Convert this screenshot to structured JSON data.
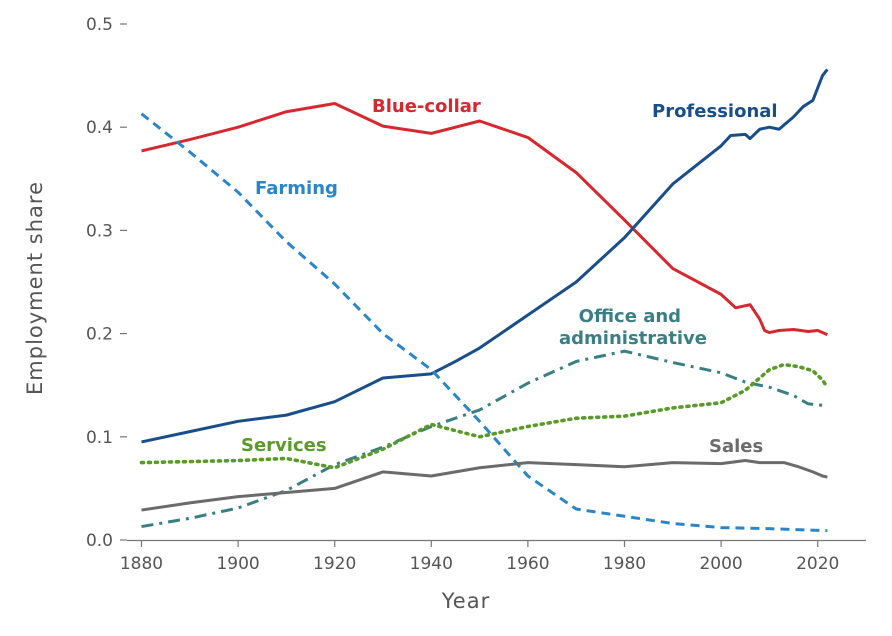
{
  "chart_data": {
    "type": "line",
    "title": "",
    "xlabel": "Year",
    "ylabel": "Employment share",
    "xlim": [
      1877,
      2030
    ],
    "ylim": [
      0,
      0.5
    ],
    "xticks": [
      1880,
      1900,
      1920,
      1940,
      1960,
      1980,
      2000,
      2020
    ],
    "yticks": [
      0.0,
      0.1,
      0.2,
      0.3,
      0.4,
      0.5
    ],
    "ytick_labels": [
      "0.0",
      "0.1",
      "0.2",
      "0.3",
      "0.4",
      "0.5"
    ],
    "grid": false,
    "legend": "none",
    "series": [
      {
        "name": "Blue-collar",
        "color": "#d7282f",
        "style": "solid",
        "x": [
          1880,
          1890,
          1900,
          1910,
          1920,
          1930,
          1940,
          1950,
          1960,
          1970,
          1980,
          1990,
          2000,
          2003,
          2006,
          2008,
          2009,
          2010,
          2012,
          2015,
          2018,
          2020,
          2022
        ],
        "y": [
          0.377,
          0.388,
          0.4,
          0.415,
          0.423,
          0.401,
          0.394,
          0.406,
          0.39,
          0.356,
          0.31,
          0.263,
          0.238,
          0.225,
          0.228,
          0.214,
          0.203,
          0.201,
          0.203,
          0.204,
          0.202,
          0.203,
          0.199
        ]
      },
      {
        "name": "Professional",
        "color": "#1a4e8a",
        "style": "solid",
        "x": [
          1880,
          1890,
          1900,
          1910,
          1920,
          1930,
          1940,
          1945,
          1950,
          1960,
          1970,
          1980,
          1990,
          2000,
          2002,
          2005,
          2006,
          2008,
          2010,
          2012,
          2015,
          2017,
          2019,
          2020,
          2021,
          2022
        ],
        "y": [
          0.095,
          0.105,
          0.115,
          0.121,
          0.134,
          0.157,
          0.161,
          0.173,
          0.186,
          0.218,
          0.25,
          0.293,
          0.345,
          0.382,
          0.392,
          0.393,
          0.389,
          0.398,
          0.4,
          0.398,
          0.41,
          0.42,
          0.426,
          0.438,
          0.45,
          0.456
        ]
      },
      {
        "name": "Farming",
        "color": "#2a86c8",
        "style": "dashed",
        "x": [
          1880,
          1890,
          1900,
          1910,
          1920,
          1930,
          1940,
          1950,
          1960,
          1970,
          1980,
          1990,
          2000,
          2010,
          2022
        ],
        "y": [
          0.413,
          0.376,
          0.337,
          0.289,
          0.248,
          0.2,
          0.165,
          0.115,
          0.062,
          0.03,
          0.023,
          0.016,
          0.012,
          0.011,
          0.009
        ]
      },
      {
        "name": "Office and administrative",
        "color": "#3a7f84",
        "style": "dashdot",
        "x": [
          1880,
          1890,
          1900,
          1910,
          1920,
          1930,
          1940,
          1950,
          1960,
          1970,
          1980,
          1990,
          2000,
          2005,
          2010,
          2015,
          2018,
          2020,
          2022
        ],
        "y": [
          0.013,
          0.021,
          0.031,
          0.048,
          0.073,
          0.09,
          0.11,
          0.126,
          0.152,
          0.173,
          0.183,
          0.172,
          0.162,
          0.153,
          0.148,
          0.14,
          0.132,
          0.131,
          0.13
        ]
      },
      {
        "name": "Services",
        "color": "#5a9a2a",
        "style": "dotted",
        "x": [
          1880,
          1890,
          1900,
          1910,
          1920,
          1930,
          1940,
          1950,
          1960,
          1970,
          1980,
          1990,
          2000,
          2005,
          2010,
          2013,
          2016,
          2019,
          2021,
          2022
        ],
        "y": [
          0.075,
          0.076,
          0.077,
          0.079,
          0.07,
          0.088,
          0.112,
          0.1,
          0.11,
          0.118,
          0.12,
          0.128,
          0.133,
          0.145,
          0.165,
          0.17,
          0.168,
          0.164,
          0.155,
          0.148
        ]
      },
      {
        "name": "Sales",
        "color": "#6b6b6b",
        "style": "solid",
        "x": [
          1880,
          1890,
          1900,
          1910,
          1920,
          1930,
          1940,
          1950,
          1960,
          1970,
          1980,
          1990,
          2000,
          2005,
          2008,
          2010,
          2013,
          2016,
          2019,
          2021,
          2022
        ],
        "y": [
          0.029,
          0.036,
          0.042,
          0.046,
          0.05,
          0.066,
          0.062,
          0.07,
          0.075,
          0.073,
          0.071,
          0.075,
          0.074,
          0.077,
          0.075,
          0.075,
          0.075,
          0.071,
          0.066,
          0.062,
          0.061
        ]
      }
    ]
  }
}
